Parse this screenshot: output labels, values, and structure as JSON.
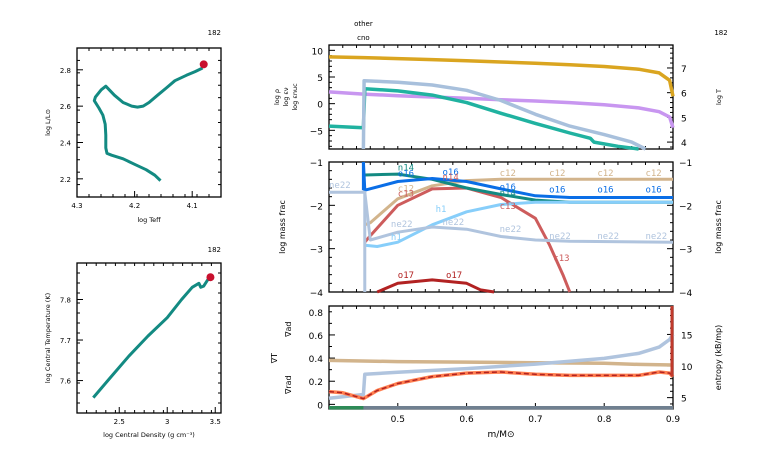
{
  "frame_number": "182",
  "chart_data": [
    {
      "id": "hr",
      "type": "line",
      "title": "",
      "corner_label": "182",
      "xlabel": "log Teff",
      "ylabel": "log L/L_sun",
      "xlim": [
        4.3,
        4.05
      ],
      "ylim": [
        2.1,
        2.92
      ],
      "xticks": [
        4.3,
        4.2,
        4.1
      ],
      "xtick_labels": [
        "4.3",
        "4.2",
        "4.1"
      ],
      "yticks": [
        2.2,
        2.4,
        2.6,
        2.8
      ],
      "ytick_labels": [
        "2.2",
        "2.4",
        "2.6",
        "2.8"
      ],
      "series": [
        {
          "name": "track",
          "color": "#138a82",
          "x": [
            4.155,
            4.165,
            4.18,
            4.2,
            4.22,
            4.24,
            4.248,
            4.25,
            4.25,
            4.251,
            4.255,
            4.262,
            4.27,
            4.268,
            4.258,
            4.25,
            4.235,
            4.22,
            4.205,
            4.195,
            4.185,
            4.175,
            4.16,
            4.145,
            4.13,
            4.11,
            4.095,
            4.082
          ],
          "y": [
            2.19,
            2.22,
            2.25,
            2.28,
            2.31,
            2.33,
            2.34,
            2.37,
            2.44,
            2.5,
            2.55,
            2.59,
            2.63,
            2.65,
            2.69,
            2.71,
            2.66,
            2.62,
            2.6,
            2.595,
            2.6,
            2.62,
            2.66,
            2.7,
            2.74,
            2.77,
            2.79,
            2.81
          ]
        }
      ],
      "marker": {
        "x": 4.08,
        "y": 2.83,
        "color": "#c8102e"
      }
    },
    {
      "id": "center",
      "type": "line",
      "corner_label": "182",
      "xlabel": "log Central Density (g cm^-3)",
      "ylabel": "log Central Temperature (K)",
      "xlim": [
        2.06,
        3.56
      ],
      "ylim": [
        7.52,
        7.89
      ],
      "xticks": [
        2.5,
        3,
        3.5
      ],
      "xtick_labels": [
        "2.5",
        "3",
        "3.5"
      ],
      "yticks": [
        7.6,
        7.7,
        7.8
      ],
      "ytick_labels": [
        "7.6",
        "7.7",
        "7.8"
      ],
      "series": [
        {
          "name": "track",
          "color": "#138a82",
          "x": [
            2.23,
            2.4,
            2.6,
            2.8,
            3.0,
            3.15,
            3.26,
            3.33,
            3.35,
            3.38,
            3.42,
            3.45
          ],
          "y": [
            7.558,
            7.605,
            7.66,
            7.71,
            7.755,
            7.8,
            7.83,
            7.84,
            7.83,
            7.833,
            7.848,
            7.853
          ]
        }
      ],
      "marker": {
        "x": 3.45,
        "y": 7.855,
        "color": "#c8102e"
      }
    },
    {
      "id": "profile_top",
      "type": "line",
      "corner_label": "182",
      "top_labels": [
        "other",
        "cno"
      ],
      "xlim": [
        0.4,
        0.9
      ],
      "ylim": [
        -8.5,
        11
      ],
      "yticks": [
        -5,
        0,
        5,
        10
      ],
      "ytick_labels": [
        "−5",
        "0",
        "5",
        "10"
      ],
      "y2lim": [
        3.72,
        7.93
      ],
      "y2ticks": [
        4,
        5,
        6,
        7
      ],
      "y2tick_labels": [
        "4",
        "5",
        "6",
        "7"
      ],
      "ylabels": [
        {
          "text": "log ρ",
          "color": "#c896f0"
        },
        {
          "text": "log εν",
          "color": "#20b2a0"
        },
        {
          "text": "log εnuc",
          "color": "#a8c0dc"
        }
      ],
      "y2label": {
        "text": "log T",
        "color": "#daa520"
      },
      "series": [
        {
          "name": "log T",
          "axis": "y2",
          "color": "#daa520",
          "x": [
            0.4,
            0.45,
            0.5,
            0.55,
            0.6,
            0.65,
            0.7,
            0.75,
            0.8,
            0.85,
            0.88,
            0.895,
            0.9
          ],
          "y": [
            7.45,
            7.42,
            7.38,
            7.34,
            7.29,
            7.24,
            7.19,
            7.13,
            7.06,
            6.95,
            6.8,
            6.5,
            5.85
          ]
        },
        {
          "name": "log rho",
          "axis": "y",
          "color": "#c896f0",
          "x": [
            0.4,
            0.45,
            0.5,
            0.55,
            0.6,
            0.65,
            0.7,
            0.75,
            0.8,
            0.85,
            0.88,
            0.895,
            0.9
          ],
          "y": [
            2.2,
            1.8,
            1.5,
            1.25,
            1.0,
            0.75,
            0.5,
            0.2,
            -0.2,
            -0.8,
            -1.5,
            -2.5,
            -4.5
          ]
        },
        {
          "name": "log eps_nu",
          "axis": "y",
          "color": "#20b2a0",
          "x": [
            0.4,
            0.45,
            0.452,
            0.5,
            0.55,
            0.6,
            0.65,
            0.7,
            0.75,
            0.78,
            0.785,
            0.82,
            0.85
          ],
          "y": [
            -4.2,
            -4.5,
            2.8,
            2.4,
            1.6,
            0.2,
            -1.8,
            -3.7,
            -5.5,
            -6.5,
            -7.2,
            -8.0,
            -8.5
          ]
        },
        {
          "name": "log eps_nuc",
          "axis": "y",
          "color": "#a8c0dc",
          "x": [
            0.45,
            0.451,
            0.5,
            0.55,
            0.6,
            0.65,
            0.7,
            0.75,
            0.8,
            0.84,
            0.86
          ],
          "y": [
            -8.5,
            4.3,
            4.0,
            3.5,
            2.5,
            0.6,
            -2.0,
            -4.2,
            -5.8,
            -7.2,
            -8.5
          ]
        }
      ]
    },
    {
      "id": "abundances",
      "type": "line",
      "ylabel": "log mass frac",
      "y2label": "log mass frac",
      "xlim": [
        0.4,
        0.9
      ],
      "ylim": [
        -4,
        -1
      ],
      "yticks": [
        -4,
        -3,
        -2,
        -1
      ],
      "ytick_labels": [
        "−4",
        "−3",
        "−2",
        "−1"
      ],
      "series": [
        {
          "name": "c12",
          "color": "#d2b48c",
          "x": [
            0.452,
            0.46,
            0.5,
            0.55,
            0.6,
            0.65,
            0.7,
            0.9
          ],
          "y": [
            -2.45,
            -2.4,
            -1.85,
            -1.55,
            -1.43,
            -1.4,
            -1.4,
            -1.4
          ]
        },
        {
          "name": "c13",
          "color": "#cd5c5c",
          "x": [
            0.452,
            0.46,
            0.5,
            0.55,
            0.6,
            0.65,
            0.7,
            0.72,
            0.74,
            0.75
          ],
          "y": [
            -2.85,
            -2.7,
            -2.0,
            -1.62,
            -1.6,
            -1.82,
            -2.3,
            -2.9,
            -3.6,
            -4.05
          ]
        },
        {
          "name": "n14",
          "color": "#138a82",
          "x": [
            0.452,
            0.5,
            0.55,
            0.6,
            0.65,
            0.7,
            0.75,
            0.9
          ],
          "y": [
            -1.3,
            -1.28,
            -1.4,
            -1.6,
            -1.75,
            -1.88,
            -1.93,
            -1.93
          ]
        },
        {
          "name": "o16",
          "color": "#0a6ee6",
          "x": [
            0.45,
            0.452,
            0.5,
            0.55,
            0.6,
            0.65,
            0.7,
            0.75,
            0.9
          ],
          "y": [
            -1.0,
            -1.65,
            -1.45,
            -1.38,
            -1.45,
            -1.62,
            -1.78,
            -1.82,
            -1.82
          ]
        },
        {
          "name": "h1",
          "color": "#87cefa",
          "x": [
            0.452,
            0.47,
            0.5,
            0.55,
            0.6,
            0.65,
            0.7,
            0.75,
            0.9
          ],
          "y": [
            -2.92,
            -2.95,
            -2.85,
            -2.45,
            -2.15,
            -1.98,
            -1.93,
            -1.93,
            -1.93
          ]
        },
        {
          "name": "ne22",
          "color": "#b0c4de",
          "x": [
            0.4,
            0.452,
            0.46,
            0.5,
            0.55,
            0.6,
            0.65,
            0.7,
            0.75,
            0.9
          ],
          "y": [
            -1.7,
            -1.7,
            -2.8,
            -2.62,
            -2.5,
            -2.55,
            -2.72,
            -2.8,
            -2.83,
            -2.85
          ]
        },
        {
          "name": "o17",
          "color": "#b22222",
          "x": [
            0.47,
            0.5,
            0.55,
            0.6,
            0.62,
            0.64
          ],
          "y": [
            -4.05,
            -3.8,
            -3.72,
            -3.8,
            -3.95,
            -4.05
          ]
        }
      ],
      "curve_labels": [
        {
          "text": "n14",
          "x": 0.5,
          "y": -1.2,
          "color": "#138a82"
        },
        {
          "text": "o16",
          "x": 0.5,
          "y": -1.33,
          "color": "#0a6ee6"
        },
        {
          "text": "o16",
          "x": 0.565,
          "y": -1.3,
          "color": "#0a6ee6"
        },
        {
          "text": "n14",
          "x": 0.565,
          "y": -1.42,
          "color": "#cd5c5c"
        },
        {
          "text": "c12",
          "x": 0.5,
          "y": -1.68,
          "color": "#d2b48c"
        },
        {
          "text": "c13",
          "x": 0.5,
          "y": -1.8,
          "color": "#cd5c5c"
        },
        {
          "text": "ne22",
          "x": 0.4,
          "y": -1.6,
          "color": "#b0c4de"
        },
        {
          "text": "h1",
          "x": 0.555,
          "y": -2.15,
          "color": "#87cefa"
        },
        {
          "text": "ne22",
          "x": 0.49,
          "y": -2.5,
          "color": "#b0c4de"
        },
        {
          "text": "ne22",
          "x": 0.565,
          "y": -2.45,
          "color": "#b0c4de"
        },
        {
          "text": "h1",
          "x": 0.49,
          "y": -2.8,
          "color": "#87cefa"
        },
        {
          "text": "c12",
          "x": 0.648,
          "y": -1.32,
          "color": "#d2b48c"
        },
        {
          "text": "o16",
          "x": 0.648,
          "y": -1.65,
          "color": "#0a6ee6"
        },
        {
          "text": "n14",
          "x": 0.648,
          "y": -1.78,
          "color": "#138a82"
        },
        {
          "text": "c13",
          "x": 0.648,
          "y": -2.08,
          "color": "#cd5c5c"
        },
        {
          "text": "ne22",
          "x": 0.648,
          "y": -2.62,
          "color": "#b0c4de"
        },
        {
          "text": "c12",
          "x": 0.72,
          "y": -1.32,
          "color": "#d2b48c"
        },
        {
          "text": "o16",
          "x": 0.72,
          "y": -1.7,
          "color": "#0a6ee6"
        },
        {
          "text": "ne22",
          "x": 0.72,
          "y": -2.78,
          "color": "#b0c4de"
        },
        {
          "text": "c13",
          "x": 0.726,
          "y": -3.28,
          "color": "#cd5c5c"
        },
        {
          "text": "c12",
          "x": 0.79,
          "y": -1.32,
          "color": "#d2b48c"
        },
        {
          "text": "o16",
          "x": 0.79,
          "y": -1.7,
          "color": "#0a6ee6"
        },
        {
          "text": "ne22",
          "x": 0.79,
          "y": -2.78,
          "color": "#b0c4de"
        },
        {
          "text": "c12",
          "x": 0.86,
          "y": -1.32,
          "color": "#d2b48c"
        },
        {
          "text": "o16",
          "x": 0.86,
          "y": -1.7,
          "color": "#0a6ee6"
        },
        {
          "text": "ne22",
          "x": 0.86,
          "y": -2.78,
          "color": "#b0c4de"
        },
        {
          "text": "o17",
          "x": 0.5,
          "y": -3.68,
          "color": "#b22222"
        },
        {
          "text": "o17",
          "x": 0.57,
          "y": -3.68,
          "color": "#b22222"
        }
      ]
    },
    {
      "id": "gradients",
      "type": "line",
      "xlabel": "m/M⊙",
      "xlim": [
        0.4,
        0.9
      ],
      "xticks": [
        0.5,
        0.6,
        0.7,
        0.8,
        0.9
      ],
      "xtick_labels": [
        "0.5",
        "0.6",
        "0.7",
        "0.8",
        "0.9"
      ],
      "ylim": [
        -0.04,
        0.85
      ],
      "yticks": [
        0,
        0.2,
        0.4,
        0.6,
        0.8
      ],
      "ytick_labels": [
        "0",
        "0.2",
        "0.4",
        "0.6",
        "0.8"
      ],
      "y2lim": [
        3.2,
        19.5
      ],
      "y2ticks": [
        5,
        10,
        15
      ],
      "y2tick_labels": [
        "5",
        "10",
        "15"
      ],
      "ylabels": [
        {
          "text": "∇ad",
          "color": "#d2b48c"
        },
        {
          "text": "∇T",
          "color": "#b22222"
        },
        {
          "text": "∇rad",
          "color": "#ff7f50"
        }
      ],
      "y2label": "entropy (kB/mp)",
      "series": [
        {
          "name": "grad_ad",
          "color": "#d2b48c",
          "x": [
            0.4,
            0.5,
            0.6,
            0.7,
            0.8,
            0.85,
            0.9
          ],
          "y": [
            0.38,
            0.37,
            0.365,
            0.36,
            0.355,
            0.345,
            0.34
          ]
        },
        {
          "name": "entropy",
          "axis": "y2",
          "color": "#b0c4de",
          "x": [
            0.4,
            0.45,
            0.452,
            0.5,
            0.6,
            0.7,
            0.8,
            0.85,
            0.88,
            0.895,
            0.9
          ],
          "y": [
            4.9,
            5.5,
            8.7,
            9.0,
            9.6,
            10.3,
            11.2,
            12.0,
            13.0,
            14.2,
            15.0
          ]
        },
        {
          "name": "grad_rad",
          "color": "#ff7f50",
          "x": [
            0.4,
            0.42,
            0.45,
            0.47,
            0.5,
            0.55,
            0.6,
            0.65,
            0.7,
            0.75,
            0.8,
            0.85,
            0.88,
            0.895,
            0.9
          ],
          "y": [
            0.11,
            0.1,
            0.05,
            0.12,
            0.18,
            0.24,
            0.27,
            0.28,
            0.26,
            0.25,
            0.25,
            0.25,
            0.28,
            0.27,
            0.24
          ]
        },
        {
          "name": "grad_T",
          "color": "#b22222",
          "dashed": true,
          "x": [
            0.4,
            0.42,
            0.45,
            0.47,
            0.5,
            0.55,
            0.6,
            0.65,
            0.7,
            0.75,
            0.8,
            0.85,
            0.88,
            0.895,
            0.9
          ],
          "y": [
            0.11,
            0.1,
            0.05,
            0.12,
            0.18,
            0.24,
            0.27,
            0.28,
            0.26,
            0.25,
            0.25,
            0.25,
            0.28,
            0.27,
            0.24
          ]
        },
        {
          "name": "mixing_base",
          "color": "#708090",
          "x": [
            0.4,
            0.9
          ],
          "y": [
            -0.03,
            -0.03
          ]
        },
        {
          "name": "mixing_conv",
          "color": "#2e8b57",
          "x": [
            0.4,
            0.45
          ],
          "y": [
            -0.03,
            -0.03
          ]
        }
      ]
    }
  ]
}
